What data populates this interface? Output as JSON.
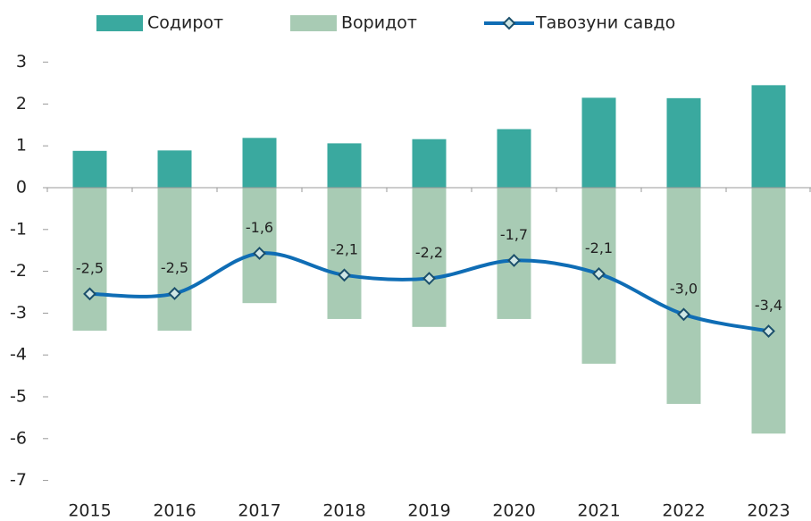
{
  "chart_data": {
    "type": "bar_line",
    "categories": [
      "2015",
      "2016",
      "2017",
      "2018",
      "2019",
      "2020",
      "2021",
      "2022",
      "2023"
    ],
    "series": [
      {
        "name": "Содирот",
        "type": "bar",
        "color": "#3aa99f",
        "values": [
          0.88,
          0.89,
          1.19,
          1.06,
          1.16,
          1.4,
          2.15,
          2.14,
          2.45
        ]
      },
      {
        "name": "Воридот",
        "type": "bar",
        "color": "#a8cbb4",
        "values": [
          -3.42,
          -3.42,
          -2.76,
          -3.14,
          -3.33,
          -3.14,
          -4.21,
          -5.17,
          -5.88
        ]
      },
      {
        "name": "Тавозуни савдо",
        "type": "line",
        "color": "#0f6db5",
        "values": [
          -2.54,
          -2.53,
          -1.57,
          -2.09,
          -2.17,
          -1.74,
          -2.06,
          -3.03,
          -3.43
        ],
        "value_labels": [
          "-2,5",
          "-2,5",
          "-1,6",
          "-2,1",
          "-2,2",
          "-1,7",
          "-2,1",
          "-3,0",
          "-3,4"
        ]
      }
    ],
    "ylim": [
      -7,
      3
    ],
    "yticks": [
      -7,
      -6,
      -5,
      -4,
      -3,
      -2,
      -1,
      0,
      1,
      2,
      3
    ],
    "grid": false,
    "legend": "top"
  }
}
